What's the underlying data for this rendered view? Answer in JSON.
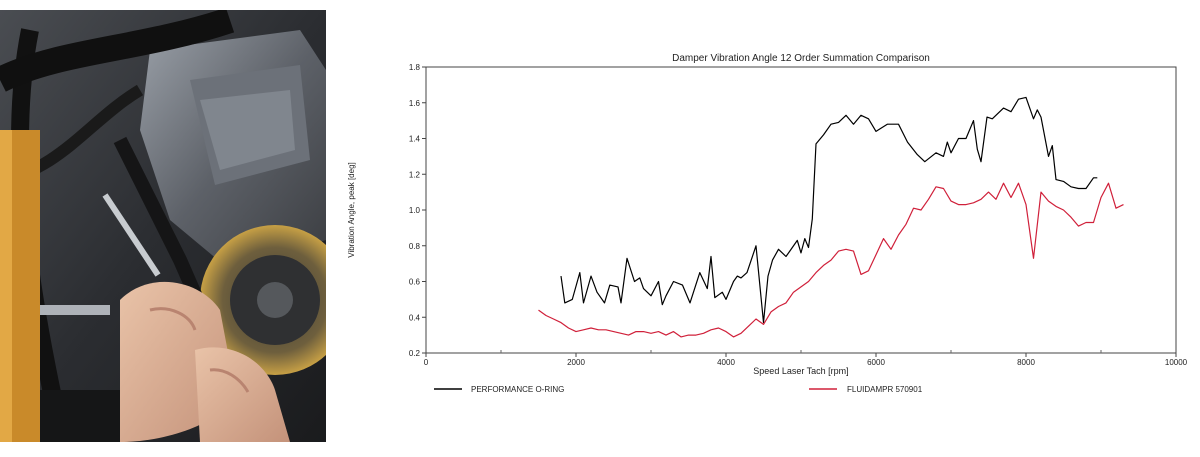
{
  "photo": {
    "description_icon": "engine-bay-photo-with-hands-and-wrench"
  },
  "chart_data": {
    "type": "line",
    "title": "Damper Vibration Angle 12 Order Summation Comparison",
    "xlabel": "Speed Laser Tach [rpm]",
    "ylabel": "Vibration Angle, peak [deg]",
    "xlim": [
      0,
      10000
    ],
    "ylim": [
      0.2,
      1.8
    ],
    "xticks": [
      0,
      2000,
      4000,
      6000,
      8000,
      10000
    ],
    "yticks": [
      0.2,
      0.4,
      0.6,
      0.8,
      1.0,
      1.2,
      1.4,
      1.6,
      1.8
    ],
    "ytick_labels": [
      "0.2",
      "0.4",
      "0.6",
      "0.8",
      "1.0",
      "1.2",
      "1.4",
      "1.6",
      "1.8"
    ],
    "grid": false,
    "legend_position": "bottom",
    "series": [
      {
        "name": "PERFORMANCE O-RING",
        "color": "#000000",
        "x": [
          1800,
          1850,
          1950,
          2050,
          2100,
          2200,
          2280,
          2380,
          2450,
          2560,
          2600,
          2680,
          2780,
          2850,
          2900,
          3000,
          3100,
          3150,
          3200,
          3300,
          3420,
          3520,
          3650,
          3750,
          3800,
          3850,
          3950,
          4000,
          4100,
          4150,
          4200,
          4280,
          4400,
          4500,
          4560,
          4620,
          4700,
          4800,
          4850,
          4950,
          5000,
          5050,
          5100,
          5150,
          5200,
          5300,
          5400,
          5500,
          5600,
          5700,
          5800,
          5900,
          6000,
          6150,
          6300,
          6420,
          6550,
          6650,
          6800,
          6900,
          6950,
          7000,
          7100,
          7200,
          7300,
          7350,
          7400,
          7480,
          7550,
          7700,
          7800,
          7900,
          8000,
          8100,
          8150,
          8200,
          8300,
          8350,
          8400,
          8500,
          8600,
          8700,
          8800,
          8900,
          8950
        ],
        "y": [
          0.63,
          0.48,
          0.5,
          0.65,
          0.48,
          0.63,
          0.54,
          0.48,
          0.58,
          0.57,
          0.48,
          0.73,
          0.6,
          0.62,
          0.56,
          0.52,
          0.6,
          0.47,
          0.52,
          0.6,
          0.58,
          0.48,
          0.65,
          0.56,
          0.74,
          0.51,
          0.54,
          0.5,
          0.6,
          0.63,
          0.62,
          0.65,
          0.8,
          0.37,
          0.63,
          0.72,
          0.78,
          0.74,
          0.77,
          0.83,
          0.76,
          0.84,
          0.79,
          0.95,
          1.37,
          1.42,
          1.48,
          1.49,
          1.53,
          1.48,
          1.53,
          1.51,
          1.44,
          1.48,
          1.48,
          1.38,
          1.31,
          1.27,
          1.32,
          1.3,
          1.38,
          1.32,
          1.4,
          1.4,
          1.5,
          1.34,
          1.27,
          1.52,
          1.51,
          1.57,
          1.55,
          1.62,
          1.63,
          1.51,
          1.56,
          1.52,
          1.3,
          1.36,
          1.17,
          1.16,
          1.13,
          1.12,
          1.12,
          1.18,
          1.18
        ]
      },
      {
        "name": "FLUIDAMPR 570901",
        "color": "#d0203a",
        "x": [
          1500,
          1600,
          1700,
          1800,
          1900,
          2000,
          2100,
          2200,
          2300,
          2400,
          2500,
          2600,
          2700,
          2800,
          2900,
          3000,
          3100,
          3200,
          3300,
          3400,
          3500,
          3600,
          3700,
          3800,
          3900,
          4000,
          4100,
          4200,
          4300,
          4400,
          4500,
          4600,
          4700,
          4800,
          4900,
          5000,
          5100,
          5200,
          5300,
          5400,
          5500,
          5600,
          5700,
          5800,
          5900,
          6000,
          6100,
          6200,
          6300,
          6400,
          6500,
          6600,
          6700,
          6800,
          6900,
          7000,
          7100,
          7200,
          7300,
          7400,
          7500,
          7600,
          7700,
          7800,
          7900,
          8000,
          8100,
          8200,
          8300,
          8400,
          8500,
          8600,
          8700,
          8800,
          8900,
          9000,
          9100,
          9200,
          9300
        ],
        "y": [
          0.44,
          0.41,
          0.39,
          0.37,
          0.34,
          0.32,
          0.33,
          0.34,
          0.33,
          0.33,
          0.32,
          0.31,
          0.3,
          0.32,
          0.32,
          0.31,
          0.32,
          0.3,
          0.32,
          0.29,
          0.3,
          0.3,
          0.31,
          0.33,
          0.34,
          0.32,
          0.29,
          0.31,
          0.35,
          0.39,
          0.36,
          0.43,
          0.46,
          0.48,
          0.54,
          0.57,
          0.6,
          0.65,
          0.69,
          0.72,
          0.77,
          0.78,
          0.77,
          0.64,
          0.66,
          0.75,
          0.84,
          0.78,
          0.86,
          0.92,
          1.01,
          1.0,
          1.06,
          1.13,
          1.12,
          1.05,
          1.03,
          1.03,
          1.04,
          1.06,
          1.1,
          1.06,
          1.15,
          1.07,
          1.15,
          1.03,
          0.73,
          1.1,
          1.05,
          1.02,
          1.0,
          0.96,
          0.91,
          0.93,
          0.93,
          1.07,
          1.15,
          1.01,
          1.03
        ]
      }
    ]
  }
}
